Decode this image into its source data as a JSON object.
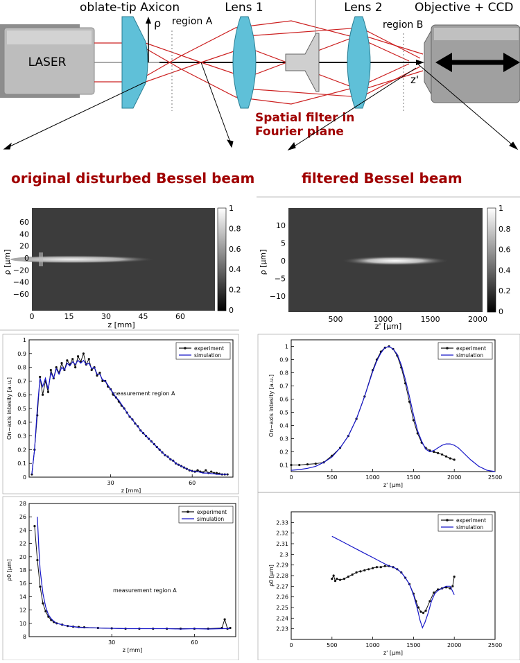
{
  "setup": {
    "laser_label": "LASER",
    "axicon_label": "oblate-tip Axicon",
    "rho_label": "ρ",
    "region_a_label": "region A",
    "lens1_label": "Lens 1",
    "lens2_label": "Lens 2",
    "objective_label": "Objective + CCD",
    "region_b_label": "region B",
    "z_prime_label": "z'",
    "spatial_filter_line1": "Spatial filter in",
    "spatial_filter_line2": "Fourier plane",
    "accent_red": "#a00000",
    "lens_blue": "#5fc0d8",
    "ray_red": "#cc2020"
  },
  "headings": {
    "left": "original disturbed Bessel beam",
    "right": "filtered Bessel beam"
  },
  "heatmaps": {
    "left": {
      "ylabel": "ρ [µm]",
      "xlabel": "z [mm]",
      "xticks": [
        "0",
        "15",
        "30",
        "45",
        "60"
      ],
      "yticks": [
        "60",
        "40",
        "20",
        "0",
        "−20",
        "−40",
        "−60"
      ],
      "cbar_ticks": [
        "1",
        "0.8",
        "0.6",
        "0.4",
        "0.2",
        "0"
      ]
    },
    "right": {
      "ylabel": "ρ [µm]",
      "xlabel": "z' [µm]",
      "xticks": [
        "500",
        "1000",
        "1500",
        "2000"
      ],
      "yticks": [
        "10",
        "5",
        "0",
        "−5",
        "−10"
      ],
      "cbar_ticks": [
        "1",
        "0.8",
        "0.6",
        "0.4",
        "0.2",
        "0"
      ]
    }
  },
  "chart_data": [
    {
      "id": "intensity-region-a",
      "type": "line",
      "xlabel": "z [mm]",
      "ylabel": "On−axis intesity [a.u.]",
      "annotation": "measurement region A",
      "xlim": [
        0,
        75
      ],
      "ylim": [
        0,
        1
      ],
      "xticks": [
        30,
        60
      ],
      "yticks": [
        0,
        0.1,
        0.2,
        0.3,
        0.4,
        0.5,
        0.6,
        0.7,
        0.8,
        0.9,
        1
      ],
      "legend_placement": "top-right",
      "series": [
        {
          "name": "experiment",
          "color": "#111111",
          "markers": true,
          "x": [
            1,
            2,
            3,
            4,
            5,
            6,
            7,
            8,
            9,
            10,
            11,
            12,
            13,
            14,
            15,
            16,
            17,
            18,
            19,
            20,
            21,
            22,
            23,
            24,
            25,
            26,
            27,
            28,
            29,
            30,
            31,
            32,
            33,
            34,
            35,
            36,
            37,
            38,
            39,
            40,
            41,
            42,
            43,
            44,
            45,
            46,
            47,
            48,
            49,
            50,
            51,
            52,
            53,
            54,
            55,
            56,
            57,
            58,
            59,
            60,
            61,
            62,
            63,
            64,
            65,
            66,
            67,
            68,
            69,
            70,
            71,
            72,
            73
          ],
          "y": [
            0.02,
            0.2,
            0.45,
            0.73,
            0.6,
            0.7,
            0.62,
            0.78,
            0.72,
            0.8,
            0.76,
            0.83,
            0.78,
            0.85,
            0.82,
            0.86,
            0.8,
            0.88,
            0.84,
            0.9,
            0.82,
            0.86,
            0.78,
            0.8,
            0.74,
            0.76,
            0.7,
            0.7,
            0.66,
            0.64,
            0.6,
            0.58,
            0.55,
            0.52,
            0.5,
            0.47,
            0.44,
            0.42,
            0.39,
            0.37,
            0.34,
            0.32,
            0.3,
            0.28,
            0.26,
            0.24,
            0.22,
            0.2,
            0.18,
            0.16,
            0.15,
            0.13,
            0.12,
            0.1,
            0.09,
            0.08,
            0.07,
            0.06,
            0.05,
            0.045,
            0.04,
            0.05,
            0.04,
            0.035,
            0.05,
            0.03,
            0.04,
            0.03,
            0.03,
            0.025,
            0.02,
            0.02,
            0.02
          ]
        },
        {
          "name": "simulation",
          "color": "#1515c8",
          "markers": false,
          "x": [
            1,
            2,
            3,
            4,
            5,
            6,
            7,
            8,
            9,
            10,
            11,
            12,
            13,
            14,
            15,
            16,
            17,
            18,
            19,
            20,
            21,
            22,
            23,
            24,
            25,
            26,
            27,
            28,
            29,
            30,
            31,
            32,
            33,
            34,
            35,
            36,
            37,
            38,
            39,
            40,
            41,
            42,
            43,
            44,
            45,
            46,
            47,
            48,
            49,
            50,
            51,
            52,
            53,
            54,
            55,
            56,
            57,
            58,
            59,
            60,
            61,
            62,
            63,
            64,
            65,
            66,
            67,
            68,
            69,
            70,
            71,
            72,
            73
          ],
          "y": [
            0.02,
            0.2,
            0.5,
            0.72,
            0.66,
            0.72,
            0.64,
            0.76,
            0.72,
            0.79,
            0.75,
            0.8,
            0.78,
            0.83,
            0.81,
            0.84,
            0.82,
            0.85,
            0.83,
            0.85,
            0.82,
            0.83,
            0.79,
            0.8,
            0.75,
            0.75,
            0.71,
            0.7,
            0.67,
            0.64,
            0.61,
            0.58,
            0.56,
            0.53,
            0.5,
            0.47,
            0.44,
            0.42,
            0.39,
            0.37,
            0.34,
            0.32,
            0.3,
            0.28,
            0.26,
            0.24,
            0.22,
            0.2,
            0.18,
            0.16,
            0.15,
            0.13,
            0.12,
            0.1,
            0.09,
            0.08,
            0.07,
            0.06,
            0.05,
            0.045,
            0.04,
            0.04,
            0.035,
            0.03,
            0.03,
            0.03,
            0.025,
            0.025,
            0.02,
            0.02,
            0.02,
            0.02,
            0.02
          ]
        }
      ]
    },
    {
      "id": "intensity-region-b",
      "type": "line",
      "xlabel": "z' [µm]",
      "ylabel": "On−axis intesity [a.u.]",
      "xlim": [
        0,
        2500
      ],
      "ylim": [
        0.05,
        1.05
      ],
      "xticks": [
        0,
        500,
        1000,
        1500,
        2000,
        2500
      ],
      "yticks": [
        0.1,
        0.2,
        0.3,
        0.4,
        0.5,
        0.6,
        0.7,
        0.8,
        0.9,
        1
      ],
      "legend_placement": "top-right",
      "series": [
        {
          "name": "experiment",
          "color": "#111111",
          "markers": true,
          "x": [
            0,
            100,
            200,
            300,
            400,
            500,
            600,
            700,
            800,
            900,
            1000,
            1050,
            1100,
            1150,
            1200,
            1250,
            1300,
            1350,
            1400,
            1450,
            1500,
            1550,
            1600,
            1650,
            1700,
            1750,
            1800,
            1850,
            1900,
            1950,
            2000
          ],
          "y": [
            0.1,
            0.1,
            0.105,
            0.11,
            0.12,
            0.17,
            0.23,
            0.32,
            0.45,
            0.62,
            0.82,
            0.9,
            0.96,
            0.99,
            1.0,
            0.98,
            0.93,
            0.84,
            0.72,
            0.58,
            0.44,
            0.34,
            0.27,
            0.23,
            0.21,
            0.2,
            0.19,
            0.18,
            0.165,
            0.15,
            0.14
          ]
        },
        {
          "name": "simulation",
          "color": "#1515c8",
          "markers": false,
          "x": [
            0,
            100,
            200,
            300,
            400,
            500,
            600,
            700,
            800,
            900,
            1000,
            1050,
            1100,
            1150,
            1200,
            1250,
            1300,
            1350,
            1400,
            1450,
            1500,
            1550,
            1600,
            1650,
            1700,
            1750,
            1800,
            1850,
            1900,
            1950,
            2000,
            2050,
            2100,
            2200,
            2300,
            2400,
            2500
          ],
          "y": [
            0.06,
            0.065,
            0.075,
            0.09,
            0.12,
            0.16,
            0.23,
            0.32,
            0.45,
            0.62,
            0.81,
            0.89,
            0.95,
            0.99,
            1.0,
            0.98,
            0.94,
            0.86,
            0.75,
            0.62,
            0.48,
            0.36,
            0.28,
            0.22,
            0.2,
            0.21,
            0.23,
            0.25,
            0.26,
            0.26,
            0.25,
            0.23,
            0.2,
            0.14,
            0.09,
            0.06,
            0.05
          ]
        }
      ]
    },
    {
      "id": "radius-region-a",
      "type": "line",
      "xlabel": "z [mm]",
      "ylabel": "ρ0 [µm]",
      "annotation": "measurement region A",
      "xlim": [
        0,
        75
      ],
      "ylim": [
        8,
        28
      ],
      "xticks": [
        30,
        60
      ],
      "yticks": [
        8,
        10,
        12,
        14,
        16,
        18,
        20,
        22,
        24,
        26,
        28
      ],
      "legend_placement": "top-right",
      "series": [
        {
          "name": "experiment",
          "color": "#111111",
          "markers": true,
          "x": [
            2,
            3,
            4,
            5,
            6,
            7,
            8,
            9,
            10,
            12,
            14,
            16,
            18,
            20,
            25,
            30,
            35,
            40,
            45,
            50,
            55,
            60,
            65,
            70,
            71,
            72,
            73
          ],
          "y": [
            24.6,
            19.5,
            15.5,
            13.0,
            11.8,
            11.0,
            10.5,
            10.2,
            10.0,
            9.8,
            9.6,
            9.5,
            9.45,
            9.4,
            9.3,
            9.25,
            9.2,
            9.2,
            9.2,
            9.2,
            9.2,
            9.2,
            9.2,
            9.3,
            10.6,
            9.2,
            9.3
          ]
        },
        {
          "name": "simulation",
          "color": "#1515c8",
          "markers": false,
          "x": [
            3,
            3.5,
            4,
            5,
            6,
            7,
            8,
            9,
            10,
            12,
            14,
            16,
            18,
            20,
            25,
            30,
            35,
            40,
            45,
            50,
            55,
            60,
            65,
            70,
            73
          ],
          "y": [
            26.0,
            21.5,
            18.0,
            14.5,
            12.5,
            11.3,
            10.7,
            10.3,
            10.0,
            9.8,
            9.6,
            9.5,
            9.4,
            9.35,
            9.3,
            9.25,
            9.2,
            9.2,
            9.2,
            9.2,
            9.15,
            9.2,
            9.15,
            9.2,
            9.2
          ]
        }
      ]
    },
    {
      "id": "radius-region-b",
      "type": "line",
      "xlabel": "z' [µm]",
      "ylabel": "ρ0 [µm]",
      "xlim": [
        0,
        2500
      ],
      "ylim": [
        2.22,
        2.34
      ],
      "xticks": [
        0,
        500,
        1000,
        1500,
        2000,
        2500
      ],
      "yticks": [
        2.23,
        2.24,
        2.25,
        2.26,
        2.27,
        2.28,
        2.29,
        2.3,
        2.31,
        2.32,
        2.33
      ],
      "legend_placement": "top-right",
      "series": [
        {
          "name": "experiment",
          "color": "#111111",
          "markers": true,
          "x": [
            500,
            520,
            540,
            560,
            600,
            650,
            700,
            750,
            800,
            850,
            900,
            950,
            1000,
            1050,
            1100,
            1150,
            1200,
            1250,
            1300,
            1350,
            1400,
            1450,
            1500,
            1530,
            1560,
            1590,
            1620,
            1650,
            1700,
            1750,
            1800,
            1850,
            1900,
            1950,
            1980,
            2000
          ],
          "y": [
            2.277,
            2.28,
            2.275,
            2.277,
            2.276,
            2.277,
            2.279,
            2.281,
            2.283,
            2.284,
            2.285,
            2.286,
            2.287,
            2.288,
            2.288,
            2.289,
            2.289,
            2.288,
            2.286,
            2.283,
            2.278,
            2.272,
            2.263,
            2.256,
            2.25,
            2.246,
            2.245,
            2.247,
            2.256,
            2.264,
            2.267,
            2.268,
            2.269,
            2.268,
            2.27,
            2.279
          ]
        },
        {
          "name": "simulation",
          "color": "#1515c8",
          "markers": false,
          "x": [
            500,
            600,
            700,
            800,
            900,
            1000,
            1100,
            1200,
            1250,
            1300,
            1350,
            1400,
            1450,
            1500,
            1550,
            1580,
            1610,
            1640,
            1680,
            1720,
            1760,
            1800,
            1850,
            1900,
            1950,
            2000
          ],
          "y": [
            2.317,
            2.313,
            2.309,
            2.305,
            2.301,
            2.297,
            2.293,
            2.289,
            2.288,
            2.286,
            2.283,
            2.278,
            2.272,
            2.262,
            2.248,
            2.238,
            2.231,
            2.236,
            2.245,
            2.256,
            2.263,
            2.266,
            2.268,
            2.27,
            2.27,
            2.262
          ]
        }
      ]
    }
  ]
}
